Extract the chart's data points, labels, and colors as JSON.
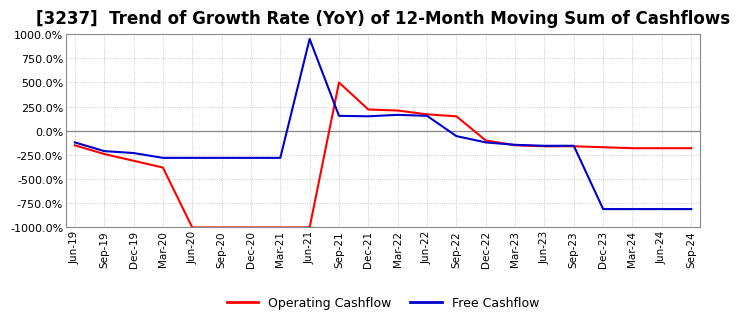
{
  "title": "[3237]  Trend of Growth Rate (YoY) of 12-Month Moving Sum of Cashflows",
  "ylim": [
    -1000,
    1000
  ],
  "yticks": [
    -1000,
    -750,
    -500,
    -250,
    0,
    250,
    500,
    750,
    1000
  ],
  "ytick_labels": [
    "-1000.0%",
    "-750.0%",
    "-500.0%",
    "-250.0%",
    "0.0%",
    "250.0%",
    "500.0%",
    "750.0%",
    "1000.0%"
  ],
  "x_labels": [
    "Jun-19",
    "Sep-19",
    "Dec-19",
    "Mar-20",
    "Jun-20",
    "Sep-20",
    "Dec-20",
    "Mar-21",
    "Jun-21",
    "Sep-21",
    "Dec-21",
    "Mar-22",
    "Jun-22",
    "Sep-22",
    "Dec-22",
    "Mar-23",
    "Jun-23",
    "Sep-23",
    "Dec-23",
    "Mar-24",
    "Jun-24",
    "Sep-24"
  ],
  "operating_cashflow": [
    -150,
    -240,
    -310,
    -380,
    -1000,
    -1000,
    -1000,
    -1000,
    -1000,
    500,
    220,
    210,
    170,
    150,
    -100,
    -150,
    -160,
    -160,
    -170,
    -180,
    -180,
    -180
  ],
  "free_cashflow": [
    -120,
    -210,
    -230,
    -280,
    -280,
    -280,
    -280,
    -280,
    950,
    155,
    150,
    165,
    155,
    -55,
    -120,
    -145,
    -155,
    -155,
    -810,
    -810,
    -810,
    -810
  ],
  "op_color": "#ff0000",
  "free_color": "#0000cc",
  "bg_color": "#ffffff",
  "grid_color": "#bbbbbb",
  "title_fontsize": 12,
  "legend_labels": [
    "Operating Cashflow",
    "Free Cashflow"
  ]
}
